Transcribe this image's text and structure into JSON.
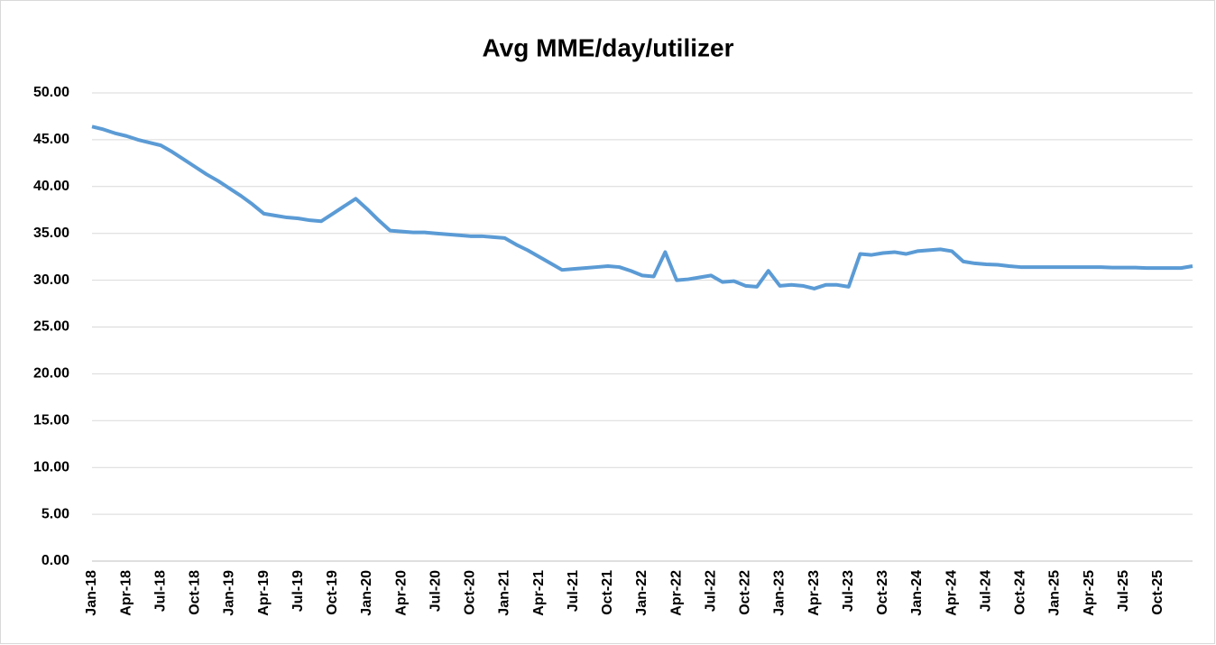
{
  "chart_data": {
    "type": "line",
    "title": "Avg MME/day/utilizer",
    "categories": [
      "Jan-18",
      null,
      null,
      "Apr-18",
      null,
      null,
      "Jul-18",
      null,
      null,
      "Oct-18",
      null,
      null,
      "Jan-19",
      null,
      null,
      "Apr-19",
      null,
      null,
      "Jul-19",
      null,
      null,
      "Oct-19",
      null,
      null,
      "Jan-20",
      null,
      null,
      "Apr-20",
      null,
      null,
      "Jul-20",
      null,
      null,
      "Oct-20",
      null,
      null,
      "Jan-21",
      null,
      null,
      "Apr-21",
      null,
      null,
      "Jul-21",
      null,
      null,
      "Oct-21",
      null,
      null,
      "Jan-22",
      null,
      null,
      "Apr-22",
      null,
      null,
      "Jul-22",
      null,
      null,
      "Oct-22",
      null,
      null,
      "Jan-23",
      null,
      null,
      "Apr-23",
      null,
      null,
      "Jul-23",
      null,
      null,
      "Oct-23",
      null,
      null,
      "Jan-24",
      null,
      null,
      "Apr-24",
      null,
      null,
      "Jul-24",
      null,
      null,
      "Oct-24",
      null,
      null,
      "Jan-25",
      null,
      null,
      "Apr-25",
      null,
      null,
      "Jul-25",
      null,
      null,
      "Oct-25",
      null,
      null,
      null
    ],
    "series": [
      {
        "name": "Avg MME/day/utilizer",
        "color": "#5b9bd5",
        "values": [
          46.4,
          46.1,
          45.7,
          45.4,
          45.0,
          44.7,
          44.4,
          43.7,
          42.9,
          42.1,
          41.3,
          40.6,
          39.8,
          39.0,
          38.1,
          37.1,
          36.9,
          36.7,
          36.6,
          36.4,
          36.3,
          37.1,
          37.9,
          38.7,
          37.6,
          36.4,
          35.3,
          35.2,
          35.1,
          35.1,
          35.0,
          34.9,
          34.8,
          34.7,
          34.7,
          34.6,
          34.5,
          33.8,
          33.2,
          32.5,
          31.8,
          31.1,
          31.2,
          31.3,
          31.4,
          31.5,
          31.4,
          31.0,
          30.5,
          30.4,
          33.0,
          30.0,
          30.1,
          30.3,
          30.5,
          29.8,
          29.9,
          29.4,
          29.3,
          31.0,
          29.4,
          29.5,
          29.4,
          29.1,
          29.5,
          29.5,
          29.3,
          32.8,
          32.7,
          32.9,
          33.0,
          32.8,
          33.1,
          33.2,
          33.3,
          33.1,
          32.0,
          31.8,
          31.7,
          31.65,
          31.5,
          31.4,
          31.4,
          31.4,
          31.4,
          31.4,
          31.4,
          31.4,
          31.4,
          31.35,
          31.35,
          31.35,
          31.3,
          31.3,
          31.3,
          31.3,
          31.5
        ]
      }
    ],
    "ylim": [
      0,
      50
    ],
    "yticks": [
      {
        "value": 0,
        "label": "0.00"
      },
      {
        "value": 5,
        "label": "5.00"
      },
      {
        "value": 10,
        "label": "10.00"
      },
      {
        "value": 15,
        "label": "15.00"
      },
      {
        "value": 20,
        "label": "20.00"
      },
      {
        "value": 25,
        "label": "25.00"
      },
      {
        "value": 30,
        "label": "30.00"
      },
      {
        "value": 35,
        "label": "35.00"
      },
      {
        "value": 40,
        "label": "40.00"
      },
      {
        "value": 45,
        "label": "45.00"
      },
      {
        "value": 50,
        "label": "50.00"
      }
    ],
    "grid": true
  }
}
